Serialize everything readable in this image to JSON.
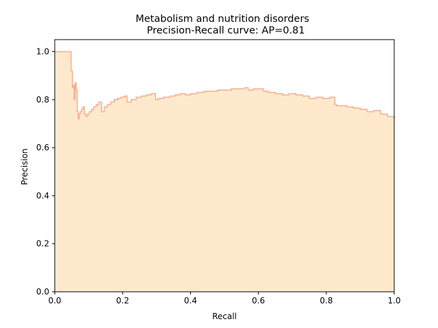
{
  "chart_data": {
    "type": "area",
    "title_lines": [
      "Metabolism and nutrition disorders",
      "Precision-Recall curve: AP=0.81"
    ],
    "xlabel": "Recall",
    "ylabel": "Precision",
    "xlim": [
      0.0,
      1.0
    ],
    "ylim": [
      0.0,
      1.05
    ],
    "xticks": [
      0.0,
      0.2,
      0.4,
      0.6,
      0.8,
      1.0
    ],
    "xtick_labels": [
      "0.0",
      "0.2",
      "0.4",
      "0.6",
      "0.8",
      "1.0"
    ],
    "yticks": [
      0.0,
      0.2,
      0.4,
      0.6,
      0.8,
      1.0
    ],
    "ytick_labels": [
      "0.0",
      "0.2",
      "0.4",
      "0.6",
      "0.8",
      "1.0"
    ],
    "grid": false,
    "step": "post",
    "fill_color": "#ffe9cc",
    "line_color": "#f4b395",
    "series": [
      {
        "recall": [
          0.0,
          0.046,
          0.048,
          0.05,
          0.052,
          0.054,
          0.057,
          0.06,
          0.063,
          0.066,
          0.069,
          0.072,
          0.075,
          0.079,
          0.083,
          0.087,
          0.092,
          0.097,
          0.102,
          0.108,
          0.115,
          0.122,
          0.13,
          0.138,
          0.146,
          0.155,
          0.165,
          0.175,
          0.185,
          0.195,
          0.205,
          0.213,
          0.225,
          0.24,
          0.255,
          0.27,
          0.285,
          0.297,
          0.305,
          0.32,
          0.34,
          0.355,
          0.37,
          0.385,
          0.4,
          0.42,
          0.44,
          0.46,
          0.48,
          0.5,
          0.52,
          0.54,
          0.56,
          0.57,
          0.585,
          0.6,
          0.615,
          0.63,
          0.65,
          0.67,
          0.69,
          0.71,
          0.73,
          0.75,
          0.77,
          0.79,
          0.81,
          0.825,
          0.83,
          0.84,
          0.86,
          0.88,
          0.9,
          0.92,
          0.94,
          0.96,
          0.98,
          1.0
        ],
        "precision": [
          1.0,
          1.0,
          0.92,
          0.92,
          0.85,
          0.86,
          0.8,
          0.87,
          0.84,
          0.75,
          0.72,
          0.74,
          0.75,
          0.76,
          0.77,
          0.74,
          0.73,
          0.74,
          0.75,
          0.76,
          0.77,
          0.78,
          0.79,
          0.75,
          0.77,
          0.78,
          0.79,
          0.8,
          0.805,
          0.81,
          0.815,
          0.79,
          0.8,
          0.81,
          0.815,
          0.82,
          0.825,
          0.8,
          0.805,
          0.81,
          0.815,
          0.82,
          0.825,
          0.82,
          0.825,
          0.83,
          0.835,
          0.835,
          0.84,
          0.84,
          0.845,
          0.845,
          0.85,
          0.84,
          0.845,
          0.845,
          0.835,
          0.83,
          0.825,
          0.82,
          0.825,
          0.82,
          0.815,
          0.805,
          0.81,
          0.805,
          0.81,
          0.78,
          0.775,
          0.775,
          0.77,
          0.765,
          0.76,
          0.75,
          0.755,
          0.74,
          0.73,
          0.72
        ]
      }
    ]
  }
}
